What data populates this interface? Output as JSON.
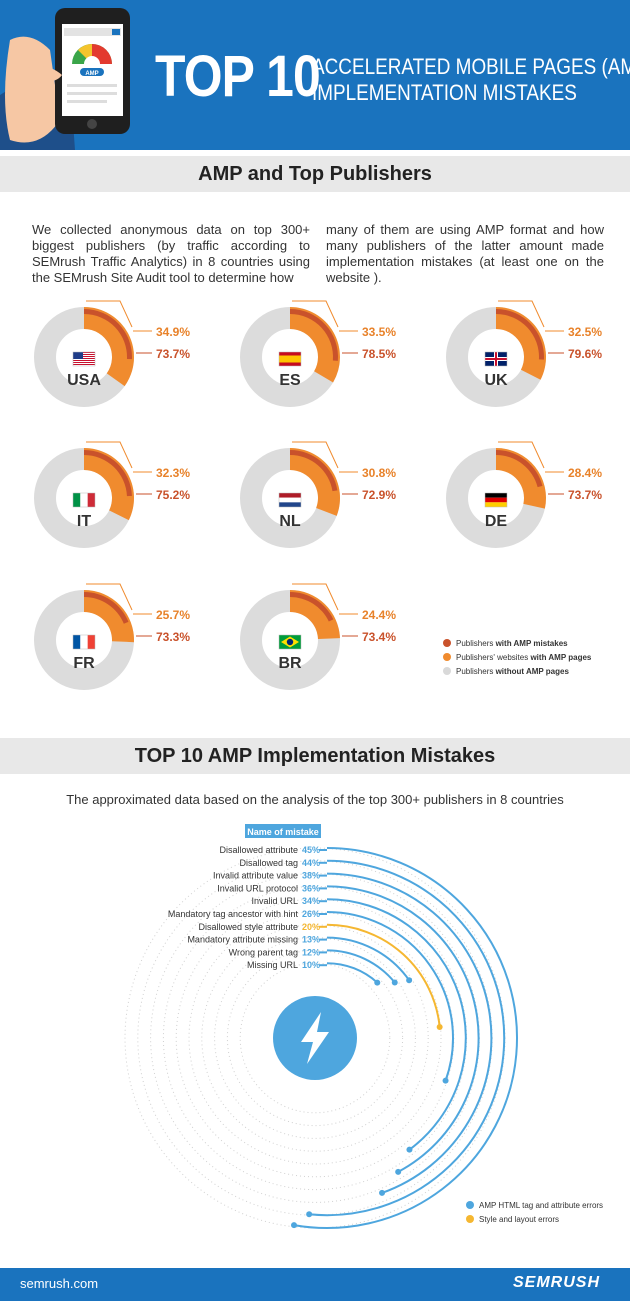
{
  "header": {
    "title_big": "TOP 10",
    "title_line1": "ACCELERATED MOBILE PAGES (AMP)",
    "title_line2": "IMPLEMENTATION MISTAKES",
    "phone_badge": "AMP"
  },
  "section1": {
    "title": "AMP and Top Publishers",
    "intro_left": "We collected anonymous data on top 300+ biggest publishers (by traffic according to SEMrush Traffic Analytics) in 8 countries using the SEMrush Site Audit tool to determine how",
    "intro_right": "many of them are using AMP format and how many publishers of the latter amount made implementation mistakes (at least one on the website ).",
    "legend": [
      {
        "prefix": "Publishers ",
        "bold": "with AMP mistakes",
        "color": "#c9522b"
      },
      {
        "prefix": "Publishers' websites ",
        "bold": "with AMP pages",
        "color": "#f08b2e"
      },
      {
        "prefix": "Publishers ",
        "bold": "without AMP pages",
        "color": "#d9d9d9"
      }
    ]
  },
  "section2": {
    "title": "TOP 10 AMP Implementation Mistakes",
    "subtitle": "The approximated data based on the analysis of the top 300+ publishers in 8 countries",
    "column_header": "Name of mistake",
    "legend": [
      {
        "label": "AMP HTML tag and attribute errors",
        "color": "#4ea6de"
      },
      {
        "label": "Style and layout errors",
        "color": "#f5b731"
      }
    ]
  },
  "footer": {
    "url": "semrush.com",
    "logo": "SEMRUSH"
  },
  "chart_data": [
    {
      "type": "pie",
      "title": "AMP and Top Publishers",
      "series_labels": {
        "amp_pages": "Publishers' websites with AMP pages",
        "amp_mistakes": "Publishers with AMP mistakes"
      },
      "countries": [
        {
          "code": "USA",
          "amp_pages": 34.9,
          "amp_mistakes": 73.7,
          "amp_pages_label": "34.9%",
          "amp_mistakes_label": "73.7%"
        },
        {
          "code": "ES",
          "amp_pages": 33.5,
          "amp_mistakes": 78.5,
          "amp_pages_label": "33.5%",
          "amp_mistakes_label": "78.5%"
        },
        {
          "code": "UK",
          "amp_pages": 32.5,
          "amp_mistakes": 79.6,
          "amp_pages_label": "32.5%",
          "amp_mistakes_label": "79.6%"
        },
        {
          "code": "IT",
          "amp_pages": 32.3,
          "amp_mistakes": 75.2,
          "amp_pages_label": "32.3%",
          "amp_mistakes_label": "75.2%"
        },
        {
          "code": "NL",
          "amp_pages": 30.8,
          "amp_mistakes": 72.9,
          "amp_pages_label": "30.8%",
          "amp_mistakes_label": "72.9%"
        },
        {
          "code": "DE",
          "amp_pages": 28.4,
          "amp_mistakes": 73.7,
          "amp_pages_label": "28.4%",
          "amp_mistakes_label": "73.7%"
        },
        {
          "code": "FR",
          "amp_pages": 25.7,
          "amp_mistakes": 73.3,
          "amp_pages_label": "25.7%",
          "amp_mistakes_label": "73.3%"
        },
        {
          "code": "BR",
          "amp_pages": 24.4,
          "amp_mistakes": 73.4,
          "amp_pages_label": "24.4%",
          "amp_mistakes_label": "73.4%"
        }
      ]
    },
    {
      "type": "bar",
      "title": "TOP 10 AMP Implementation Mistakes",
      "categories": [
        "Disallowed attribute",
        "Disallowed tag",
        "Invalid attribute value",
        "Invalid URL protocol",
        "Invalid URL",
        "Mandatory tag ancestor with hint",
        "Disallowed style attribute",
        "Mandatory attribute missing",
        "Wrong parent tag",
        "Missing URL"
      ],
      "values": [
        45,
        44,
        38,
        36,
        34,
        26,
        20,
        13,
        12,
        10
      ],
      "value_labels": [
        "45%",
        "44%",
        "38%",
        "36%",
        "34%",
        "26%",
        "20%",
        "13%",
        "12%",
        "10%"
      ],
      "groups": [
        "html",
        "html",
        "html",
        "html",
        "html",
        "html",
        "style",
        "html",
        "html",
        "html"
      ]
    }
  ]
}
